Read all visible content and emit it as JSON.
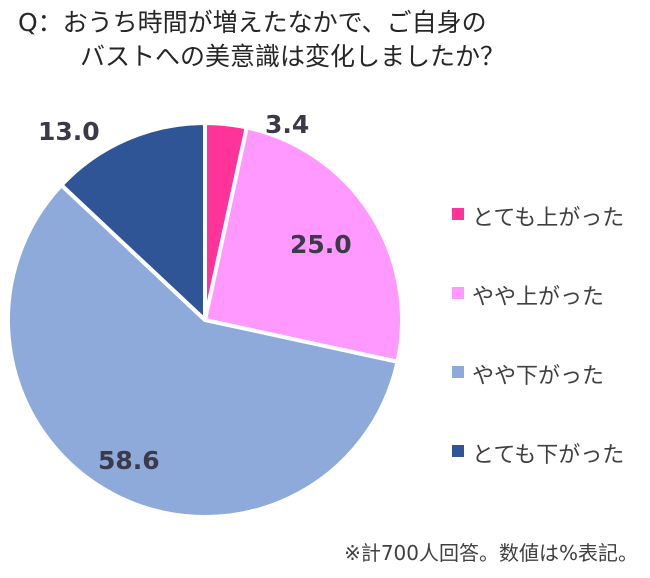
{
  "title": {
    "line1": "Q：おうち時間が増えたなかで、ご自身の",
    "line2": "バストへの美意識は変化しましたか？"
  },
  "footnote": "※計700人回答。数値は%表記。",
  "legend": [
    {
      "label": "とても上がった",
      "color": "#ff3399"
    },
    {
      "label": "やや上がった",
      "color": "#ff99ff"
    },
    {
      "label": "やや下がった",
      "color": "#8eaadb"
    },
    {
      "label": "とても下がった",
      "color": "#2f5597"
    }
  ],
  "data_labels": [
    "3.4",
    "25.0",
    "58.6",
    "13.0"
  ],
  "chart_data": {
    "type": "pie",
    "title": "Q：おうち時間が増えたなかで、ご自身のバストへの美意識は変化しましたか？",
    "categories": [
      "とても上がった",
      "やや上がった",
      "やや下がった",
      "とても下がった"
    ],
    "values": [
      3.4,
      25.0,
      58.6,
      13.0
    ],
    "colors": [
      "#ff3399",
      "#ff99ff",
      "#8eaadb",
      "#2f5597"
    ],
    "unit": "%",
    "start_angle": "12 o'clock, clockwise",
    "legend_position": "right",
    "note": "※計700人回答。数値は%表記。"
  }
}
